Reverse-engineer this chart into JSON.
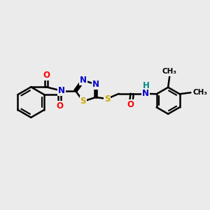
{
  "bg_color": "#ebebeb",
  "bond_color": "#000000",
  "bond_width": 1.8,
  "atom_colors": {
    "O": "#ff0000",
    "N": "#0000cc",
    "S": "#ccaa00",
    "H": "#008888",
    "C": "#000000"
  },
  "font_size_atom": 8.5,
  "font_size_small": 7.5,
  "figsize": [
    3.0,
    3.0
  ],
  "dpi": 100
}
